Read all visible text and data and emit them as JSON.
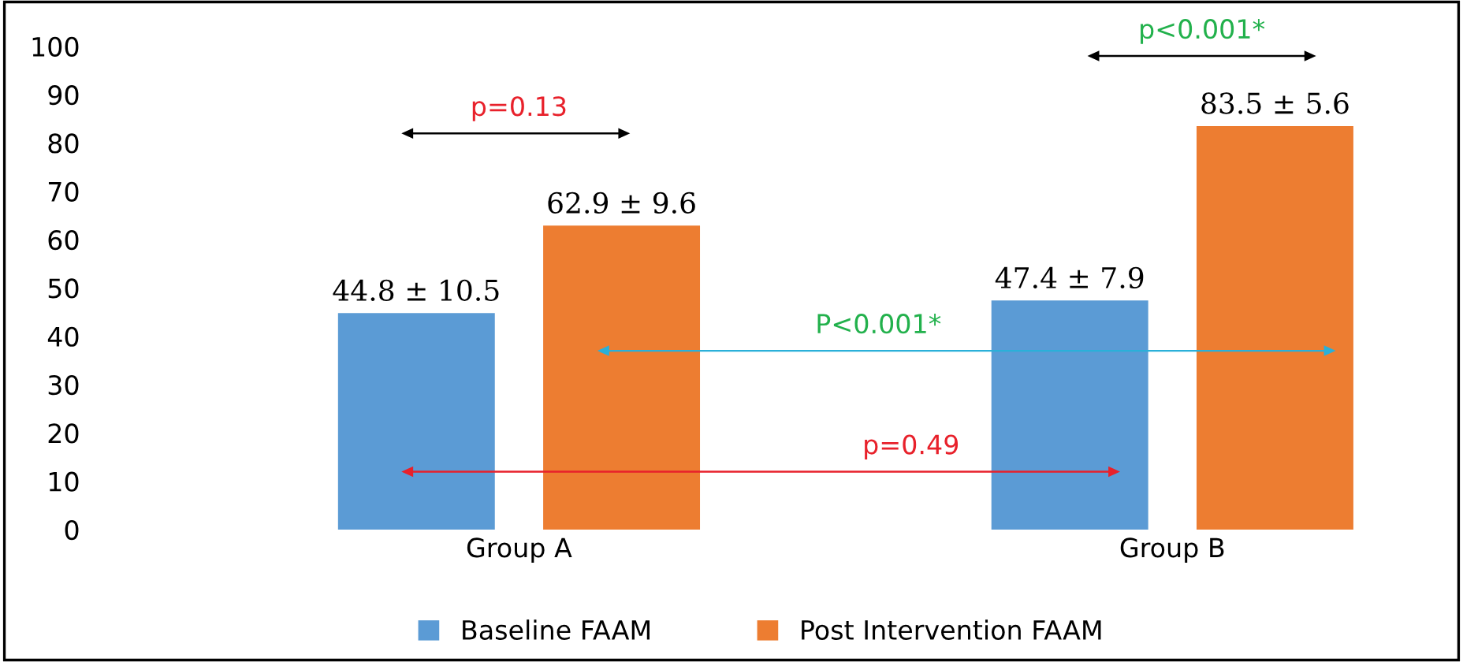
{
  "chart_data": {
    "type": "bar",
    "categories": [
      "Group A",
      "Group B"
    ],
    "series": [
      {
        "name": "Baseline FAAM",
        "color": "#5b9bd5",
        "values": [
          44.8,
          47.4
        ],
        "value_labels": [
          "44.8 ± 10.5",
          "47.4 ± 7.9"
        ]
      },
      {
        "name": "Post Intervention FAAM",
        "color": "#ed7d31",
        "values": [
          62.9,
          83.5
        ],
        "value_labels": [
          "62.9 ± 9.6",
          "83.5 ± 5.6"
        ]
      }
    ],
    "ylim": [
      0,
      100
    ],
    "yticks": [
      0,
      10,
      20,
      30,
      40,
      50,
      60,
      70,
      80,
      90,
      100
    ],
    "grid": false,
    "legend": "bottom",
    "annotations": [
      "p=0.13",
      "p<0.001*",
      "P<0.001*",
      "p=0.49"
    ]
  }
}
